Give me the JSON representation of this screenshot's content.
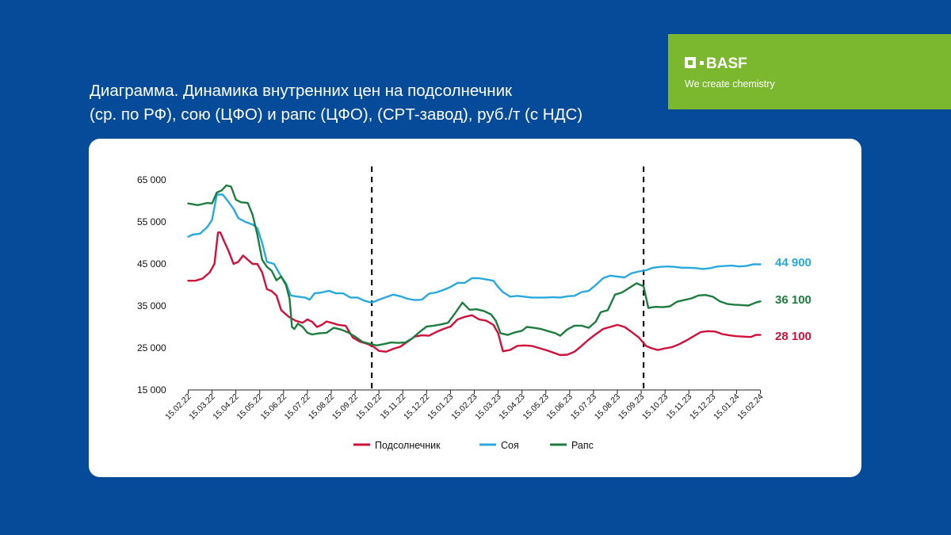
{
  "logo": {
    "brand": "BASF",
    "tagline": "We create chemistry"
  },
  "title": {
    "line1": "Диаграмма. Динамика внутренних цен на подсолнечник",
    "line2": "(ср. по РФ), сою (ЦФО) и рапс (ЦФО), (CPT-завод), руб./т (с НДС)"
  },
  "chart_data": {
    "type": "line",
    "title": "Диаграмма. Динамика внутренних цен на подсолнечник (ср. по РФ), сою (ЦФО) и рапс (ЦФО), (CPT-завод), руб./т (с НДС)",
    "xlabel": "",
    "ylabel": "руб./т",
    "ylim": [
      15000,
      65000
    ],
    "yticks": [
      15000,
      25000,
      35000,
      45000,
      55000,
      65000
    ],
    "ytick_labels": [
      "15 000",
      "25 000",
      "35 000",
      "45 000",
      "55 000",
      "65 000"
    ],
    "x_tick_labels": [
      "15.02.22",
      "15.03.22",
      "15.04.22",
      "15.05.22",
      "15.06.22",
      "15.07.22",
      "15.08.22",
      "15.09.22",
      "15.10.22",
      "15.11.22",
      "15.12.22",
      "15.01.23",
      "15.02.23",
      "15.03.23",
      "15.04.23",
      "15.05.23",
      "15.06.23",
      "15.07.23",
      "15.08.23",
      "15.09.23",
      "15.10.23",
      "15.11.23",
      "15.12.23",
      "15.01.24",
      "15.02.24"
    ],
    "vlines_at_month_index": [
      7.7,
      19.1
    ],
    "legend_position": "bottom-center",
    "end_labels": [
      "44 900",
      "36 100",
      "28 100"
    ],
    "series": [
      {
        "name": "Подсолнечник",
        "color": "#d1103a",
        "points": [
          [
            0,
            41000
          ],
          [
            0.3,
            41000
          ],
          [
            0.6,
            41500
          ],
          [
            0.9,
            43000
          ],
          [
            1.1,
            45000
          ],
          [
            1.25,
            52500
          ],
          [
            1.35,
            52500
          ],
          [
            1.5,
            50500
          ],
          [
            1.7,
            48000
          ],
          [
            1.9,
            45000
          ],
          [
            2.1,
            45500
          ],
          [
            2.3,
            47000
          ],
          [
            2.5,
            46000
          ],
          [
            2.7,
            45000
          ],
          [
            2.9,
            45000
          ],
          [
            3.1,
            43000
          ],
          [
            3.3,
            39000
          ],
          [
            3.5,
            38500
          ],
          [
            3.7,
            37500
          ],
          [
            3.9,
            34000
          ],
          [
            4.2,
            32500
          ],
          [
            4.5,
            31500
          ],
          [
            4.8,
            31000
          ],
          [
            5.0,
            31800
          ],
          [
            5.2,
            31200
          ],
          [
            5.4,
            30000
          ],
          [
            5.6,
            30500
          ],
          [
            5.8,
            31300
          ],
          [
            6.0,
            31000
          ],
          [
            6.3,
            30500
          ],
          [
            6.6,
            30300
          ],
          [
            6.9,
            27500
          ],
          [
            7.2,
            26500
          ],
          [
            7.5,
            26000
          ],
          [
            7.8,
            25200
          ],
          [
            8.0,
            24300
          ],
          [
            8.3,
            24100
          ],
          [
            8.6,
            24800
          ],
          [
            8.9,
            25300
          ],
          [
            9.2,
            26500
          ],
          [
            9.5,
            27700
          ],
          [
            9.8,
            28000
          ],
          [
            10.1,
            27900
          ],
          [
            10.4,
            28800
          ],
          [
            10.7,
            29500
          ],
          [
            11.0,
            30100
          ],
          [
            11.3,
            31800
          ],
          [
            11.6,
            32400
          ],
          [
            11.9,
            32800
          ],
          [
            12.2,
            31800
          ],
          [
            12.5,
            31500
          ],
          [
            12.8,
            30500
          ],
          [
            13.0,
            28500
          ],
          [
            13.2,
            24200
          ],
          [
            13.5,
            24500
          ],
          [
            13.8,
            25500
          ],
          [
            14.1,
            25600
          ],
          [
            14.4,
            25500
          ],
          [
            14.7,
            25000
          ],
          [
            15.0,
            24500
          ],
          [
            15.3,
            23900
          ],
          [
            15.6,
            23300
          ],
          [
            15.9,
            23400
          ],
          [
            16.2,
            24100
          ],
          [
            16.5,
            25500
          ],
          [
            16.8,
            27000
          ],
          [
            17.1,
            28300
          ],
          [
            17.4,
            29500
          ],
          [
            17.7,
            30000
          ],
          [
            18.0,
            30500
          ],
          [
            18.3,
            30000
          ],
          [
            18.6,
            28800
          ],
          [
            18.9,
            27500
          ],
          [
            19.2,
            25500
          ],
          [
            19.4,
            25000
          ],
          [
            19.7,
            24500
          ],
          [
            20.0,
            24900
          ],
          [
            20.3,
            25200
          ],
          [
            20.6,
            25900
          ],
          [
            20.9,
            26800
          ],
          [
            21.2,
            27800
          ],
          [
            21.5,
            28800
          ],
          [
            21.8,
            29000
          ],
          [
            22.1,
            28900
          ],
          [
            22.4,
            28300
          ],
          [
            22.7,
            28000
          ],
          [
            23.0,
            27800
          ],
          [
            23.3,
            27700
          ],
          [
            23.6,
            27600
          ],
          [
            23.8,
            28100
          ],
          [
            24.0,
            28100
          ]
        ]
      },
      {
        "name": "Соя",
        "color": "#28a9de",
        "points": [
          [
            0,
            51500
          ],
          [
            0.2,
            52000
          ],
          [
            0.5,
            52200
          ],
          [
            0.8,
            53800
          ],
          [
            1.0,
            55500
          ],
          [
            1.2,
            61500
          ],
          [
            1.45,
            61500
          ],
          [
            1.7,
            59700
          ],
          [
            1.9,
            58100
          ],
          [
            2.1,
            55900
          ],
          [
            2.4,
            55000
          ],
          [
            2.7,
            54400
          ],
          [
            2.9,
            53500
          ],
          [
            3.1,
            50000
          ],
          [
            3.3,
            45500
          ],
          [
            3.6,
            45000
          ],
          [
            3.9,
            42000
          ],
          [
            4.1,
            40400
          ],
          [
            4.3,
            37500
          ],
          [
            4.6,
            37200
          ],
          [
            4.9,
            37000
          ],
          [
            5.1,
            36500
          ],
          [
            5.3,
            38000
          ],
          [
            5.6,
            38200
          ],
          [
            5.9,
            38600
          ],
          [
            6.2,
            38000
          ],
          [
            6.5,
            38000
          ],
          [
            6.8,
            37000
          ],
          [
            7.1,
            37000
          ],
          [
            7.4,
            36200
          ],
          [
            7.7,
            35800
          ],
          [
            8.0,
            36500
          ],
          [
            8.3,
            37100
          ],
          [
            8.6,
            37700
          ],
          [
            8.9,
            37300
          ],
          [
            9.2,
            36700
          ],
          [
            9.5,
            36400
          ],
          [
            9.8,
            36500
          ],
          [
            10.1,
            37900
          ],
          [
            10.4,
            38200
          ],
          [
            10.7,
            38800
          ],
          [
            11.0,
            39500
          ],
          [
            11.3,
            40500
          ],
          [
            11.6,
            40500
          ],
          [
            11.9,
            41600
          ],
          [
            12.2,
            41600
          ],
          [
            12.5,
            41300
          ],
          [
            12.8,
            41000
          ],
          [
            13.0,
            39500
          ],
          [
            13.2,
            38300
          ],
          [
            13.5,
            37200
          ],
          [
            13.8,
            37400
          ],
          [
            14.1,
            37200
          ],
          [
            14.4,
            37000
          ],
          [
            14.7,
            37000
          ],
          [
            15.0,
            37000
          ],
          [
            15.3,
            37100
          ],
          [
            15.6,
            37000
          ],
          [
            15.9,
            37300
          ],
          [
            16.2,
            37400
          ],
          [
            16.5,
            38300
          ],
          [
            16.8,
            38600
          ],
          [
            17.1,
            40000
          ],
          [
            17.4,
            41600
          ],
          [
            17.7,
            42200
          ],
          [
            18.0,
            42000
          ],
          [
            18.3,
            41800
          ],
          [
            18.6,
            42800
          ],
          [
            18.9,
            43200
          ],
          [
            19.2,
            43500
          ],
          [
            19.5,
            44100
          ],
          [
            19.8,
            44300
          ],
          [
            20.1,
            44400
          ],
          [
            20.4,
            44300
          ],
          [
            20.7,
            44100
          ],
          [
            21.0,
            44100
          ],
          [
            21.3,
            44000
          ],
          [
            21.6,
            43800
          ],
          [
            21.9,
            44000
          ],
          [
            22.2,
            44400
          ],
          [
            22.5,
            44500
          ],
          [
            22.8,
            44600
          ],
          [
            23.1,
            44400
          ],
          [
            23.4,
            44500
          ],
          [
            23.7,
            44900
          ],
          [
            24.0,
            44900
          ]
        ]
      },
      {
        "name": "Рапс",
        "color": "#1c7d3e",
        "points": [
          [
            0,
            59400
          ],
          [
            0.4,
            59000
          ],
          [
            0.8,
            59500
          ],
          [
            1.0,
            59400
          ],
          [
            1.2,
            62000
          ],
          [
            1.4,
            62500
          ],
          [
            1.6,
            63700
          ],
          [
            1.8,
            63400
          ],
          [
            2.0,
            60300
          ],
          [
            2.2,
            59700
          ],
          [
            2.5,
            59500
          ],
          [
            2.7,
            56700
          ],
          [
            2.9,
            52000
          ],
          [
            3.1,
            46000
          ],
          [
            3.3,
            44300
          ],
          [
            3.5,
            43400
          ],
          [
            3.7,
            41100
          ],
          [
            3.9,
            42000
          ],
          [
            4.1,
            40000
          ],
          [
            4.25,
            36700
          ],
          [
            4.35,
            30000
          ],
          [
            4.45,
            29500
          ],
          [
            4.6,
            30800
          ],
          [
            4.8,
            30000
          ],
          [
            5.0,
            28600
          ],
          [
            5.2,
            28200
          ],
          [
            5.5,
            28500
          ],
          [
            5.8,
            28600
          ],
          [
            6.1,
            29800
          ],
          [
            6.4,
            29400
          ],
          [
            6.7,
            28700
          ],
          [
            7.0,
            27700
          ],
          [
            7.3,
            26500
          ],
          [
            7.6,
            26000
          ],
          [
            7.9,
            25600
          ],
          [
            8.2,
            25900
          ],
          [
            8.5,
            26300
          ],
          [
            8.8,
            26200
          ],
          [
            9.1,
            26300
          ],
          [
            9.4,
            27300
          ],
          [
            9.7,
            28800
          ],
          [
            10.0,
            30100
          ],
          [
            10.3,
            30300
          ],
          [
            10.6,
            30600
          ],
          [
            10.9,
            31000
          ],
          [
            11.2,
            33300
          ],
          [
            11.5,
            35800
          ],
          [
            11.8,
            34100
          ],
          [
            12.1,
            34200
          ],
          [
            12.4,
            33800
          ],
          [
            12.7,
            33000
          ],
          [
            12.9,
            31500
          ],
          [
            13.1,
            28500
          ],
          [
            13.4,
            28100
          ],
          [
            13.7,
            28700
          ],
          [
            14.0,
            29100
          ],
          [
            14.2,
            30000
          ],
          [
            14.5,
            29800
          ],
          [
            14.8,
            29500
          ],
          [
            15.1,
            29000
          ],
          [
            15.4,
            28500
          ],
          [
            15.6,
            27900
          ],
          [
            15.9,
            29400
          ],
          [
            16.2,
            30300
          ],
          [
            16.5,
            30300
          ],
          [
            16.8,
            29800
          ],
          [
            17.1,
            31300
          ],
          [
            17.3,
            33500
          ],
          [
            17.6,
            34000
          ],
          [
            17.9,
            37700
          ],
          [
            18.2,
            38200
          ],
          [
            18.5,
            39300
          ],
          [
            18.8,
            40400
          ],
          [
            19.1,
            39700
          ],
          [
            19.3,
            34500
          ],
          [
            19.6,
            34800
          ],
          [
            19.9,
            34700
          ],
          [
            20.2,
            34900
          ],
          [
            20.5,
            36000
          ],
          [
            20.8,
            36400
          ],
          [
            21.1,
            36800
          ],
          [
            21.4,
            37500
          ],
          [
            21.7,
            37600
          ],
          [
            22.0,
            37200
          ],
          [
            22.3,
            36100
          ],
          [
            22.6,
            35500
          ],
          [
            22.9,
            35300
          ],
          [
            23.2,
            35200
          ],
          [
            23.5,
            35100
          ],
          [
            23.8,
            35800
          ],
          [
            24.0,
            36100
          ]
        ]
      }
    ]
  }
}
